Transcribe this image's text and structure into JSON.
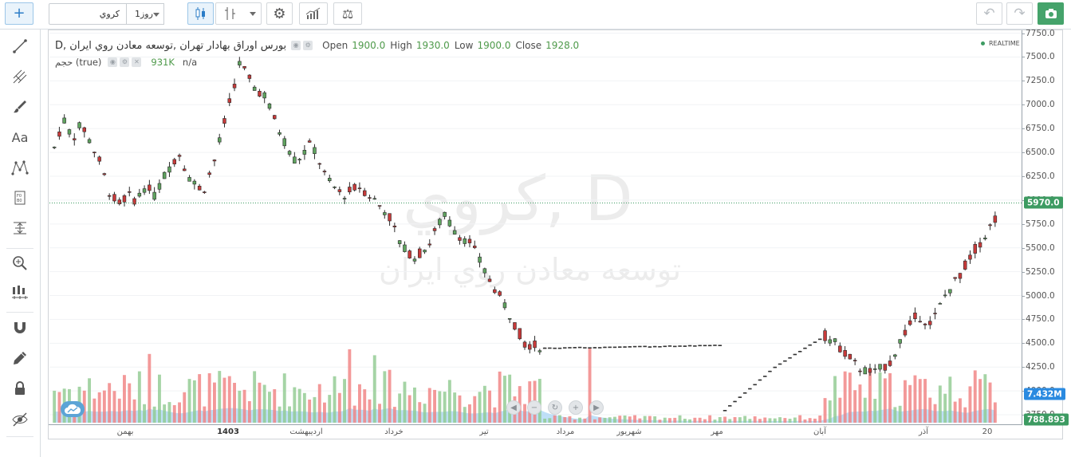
{
  "toolbar": {
    "symbol_value": "كروي",
    "interval_label": "1روز",
    "colors": {
      "accent": "#2a7cc7",
      "camera_bg": "#45a36b"
    }
  },
  "legend": {
    "title": "بورس اوراق بهادار تهران ,توسعه معادن روي ايران ,D",
    "open_label": "Open",
    "open_value": "1900.0",
    "high_label": "High",
    "high_value": "1930.0",
    "low_label": "Low",
    "low_value": "1900.0",
    "close_label": "Close",
    "close_value": "1928.0",
    "volume_label": "حجم (true)",
    "volume_value": "931K",
    "volume_na": "n/a",
    "realtime": "REALTIME"
  },
  "watermark": {
    "symbol": "كروي, D",
    "name": "توسعه معادن روي ايران"
  },
  "price_axis": {
    "ticks": [
      "7750.0",
      "7500.0",
      "7250.0",
      "7000.0",
      "6750.0",
      "6500.0",
      "6250.0",
      "6000.0",
      "5750.0",
      "5500.0",
      "5250.0",
      "5000.0",
      "4750.0",
      "4500.0",
      "4250.0",
      "4000.0",
      "3750.0"
    ],
    "last_price": "5970.0",
    "last_price_color": "#3d9b62",
    "vol_ma": "7.432M",
    "vol_ma_color": "#2a8ae0",
    "volume_last": "788.893",
    "volume_last_color": "#3d9b62"
  },
  "time_axis": {
    "labels": [
      {
        "text": "بهمن",
        "bold": false
      },
      {
        "text": "1403",
        "bold": true
      },
      {
        "text": "ارديبهشت",
        "bold": false
      },
      {
        "text": "خرداد",
        "bold": false
      },
      {
        "text": "تير",
        "bold": false
      },
      {
        "text": "مرداد",
        "bold": false
      },
      {
        "text": "شهريور",
        "bold": false
      },
      {
        "text": "مهر",
        "bold": false
      },
      {
        "text": "آبان",
        "bold": false
      },
      {
        "text": "آذر",
        "bold": false
      },
      {
        "text": "20",
        "bold": false
      }
    ]
  },
  "chart_data": {
    "type": "candlestick",
    "ylim": [
      3650,
      7780
    ],
    "up_color": "#5fa35f",
    "down_color": "#c73a3a",
    "volume_up_color": "#8fc98f",
    "volume_down_color": "#f08080",
    "volume_area_color": "#a9d6f5",
    "segments": [
      {
        "n": 20,
        "path": [
          6550,
          6850,
          6650,
          6800,
          6600,
          6400,
          6100,
          5950,
          6050,
          6000,
          6150,
          6050
        ]
      },
      {
        "n": 22,
        "path": [
          6050,
          6300,
          6500,
          6200,
          6100,
          6450,
          6950,
          7450,
          7200,
          7100
        ]
      },
      {
        "n": 22,
        "path": [
          7100,
          6700,
          6400,
          6600,
          6200,
          6050,
          6150,
          6000
        ]
      },
      {
        "n": 22,
        "path": [
          6000,
          5850,
          5500,
          5400,
          5550,
          5850,
          5650,
          5550,
          5250
        ]
      },
      {
        "n": 12,
        "path": [
          5250,
          4900,
          4500,
          4450
        ]
      },
      {
        "n": 36,
        "path": [
          4450,
          4480
        ],
        "flat": true
      },
      {
        "n": 20,
        "path": [
          3800,
          4250,
          4580
        ],
        "flat": true
      },
      {
        "n": 13,
        "path": [
          4580,
          4450,
          4250,
          4180,
          4300
        ]
      },
      {
        "n": 22,
        "path": [
          4300,
          4600,
          4800,
          4700,
          5000,
          5200,
          5450,
          5650,
          5900
        ]
      }
    ]
  }
}
